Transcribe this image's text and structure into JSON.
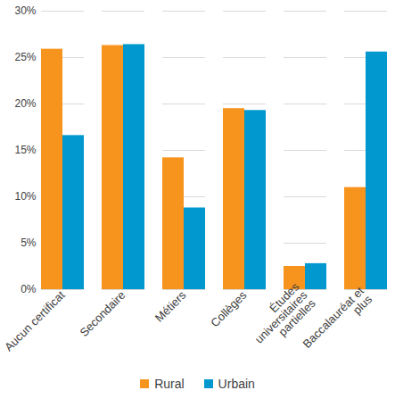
{
  "chart_data": {
    "type": "bar",
    "categories": [
      "Aucun certificat",
      "Secondaire",
      "Métiers",
      "Collèges",
      "Études universitaires partielles",
      "Baccalauréat et plus"
    ],
    "series": [
      {
        "name": "Rural",
        "color": "#f7941d",
        "values": [
          25.9,
          26.3,
          14.2,
          19.5,
          2.5,
          11.0
        ]
      },
      {
        "name": "Urbain",
        "color": "#0098ce",
        "values": [
          16.6,
          26.4,
          8.8,
          19.3,
          2.8,
          25.6
        ]
      }
    ],
    "ylim": [
      0,
      30
    ],
    "yticks": [
      {
        "value": 0,
        "label": "0%"
      },
      {
        "value": 5,
        "label": "5%"
      },
      {
        "value": 10,
        "label": "10%"
      },
      {
        "value": 15,
        "label": "15%"
      },
      {
        "value": 20,
        "label": "20%"
      },
      {
        "value": 25,
        "label": "25%"
      },
      {
        "value": 30,
        "label": "30%"
      }
    ],
    "grid": true,
    "legend": "bottom"
  }
}
